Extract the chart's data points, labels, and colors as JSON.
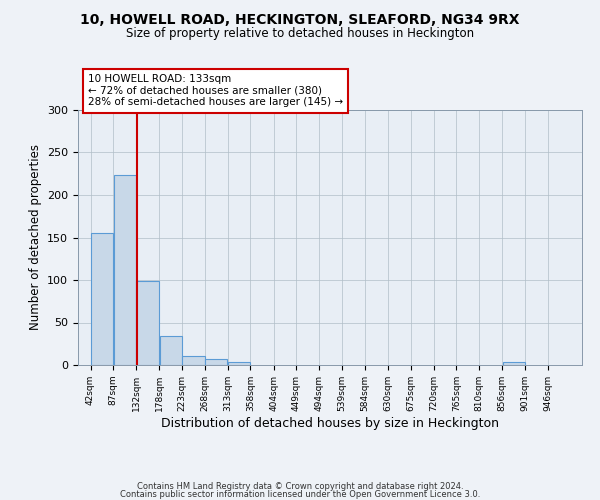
{
  "title": "10, HOWELL ROAD, HECKINGTON, SLEAFORD, NG34 9RX",
  "subtitle": "Size of property relative to detached houses in Heckington",
  "xlabel": "Distribution of detached houses by size in Heckington",
  "ylabel": "Number of detached properties",
  "footer1": "Contains HM Land Registry data © Crown copyright and database right 2024.",
  "footer2": "Contains public sector information licensed under the Open Government Licence 3.0.",
  "bin_edges": [
    42,
    87,
    132,
    178,
    223,
    268,
    313,
    358,
    404,
    449,
    494,
    539,
    584,
    630,
    675,
    720,
    765,
    810,
    856,
    901,
    946
  ],
  "bar_heights": [
    155,
    224,
    99,
    34,
    11,
    7,
    3,
    0,
    0,
    0,
    0,
    0,
    0,
    0,
    0,
    0,
    0,
    0,
    3,
    0,
    0
  ],
  "bar_color": "#c8d8e8",
  "bar_edge_color": "#5b9bd5",
  "property_value": 133,
  "vline_color": "#cc0000",
  "annotation_line1": "10 HOWELL ROAD: 133sqm",
  "annotation_line2": "← 72% of detached houses are smaller (380)",
  "annotation_line3": "28% of semi-detached houses are larger (145) →",
  "annotation_box_color": "white",
  "annotation_box_edge_color": "#cc0000",
  "ylim": [
    0,
    300
  ],
  "yticks": [
    0,
    50,
    100,
    150,
    200,
    250,
    300
  ],
  "background_color": "#eef2f7",
  "plot_background_color": "#e8eef5",
  "grid_color": "#b0bec8"
}
